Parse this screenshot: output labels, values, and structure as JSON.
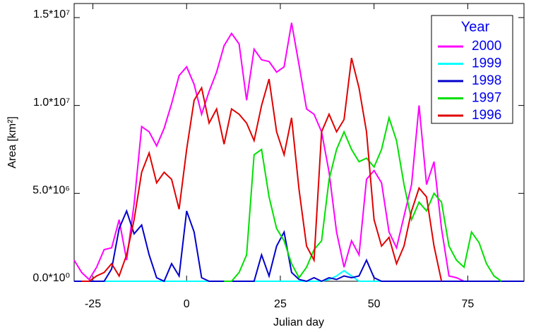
{
  "chart_data": {
    "type": "line",
    "x_label": "Julian day",
    "y_label": "Area [km²]",
    "legend_title": "Year",
    "legend_position": "upper right",
    "x": [
      -30,
      -28,
      -26,
      -24,
      -22,
      -20,
      -18,
      -16,
      -14,
      -12,
      -10,
      -8,
      -6,
      -4,
      -2,
      0,
      2,
      4,
      6,
      8,
      10,
      12,
      14,
      16,
      18,
      20,
      22,
      24,
      26,
      28,
      30,
      32,
      34,
      36,
      38,
      40,
      42,
      44,
      46,
      48,
      50,
      52,
      54,
      56,
      58,
      60,
      62,
      64,
      66,
      68,
      70,
      72,
      74,
      76,
      78,
      80,
      82,
      84,
      86,
      88,
      90
    ],
    "xlim": [
      -30,
      90
    ],
    "xticks": [
      -25,
      0,
      25,
      50,
      75
    ],
    "ylim": [
      0,
      15800000
    ],
    "yticks": [
      {
        "value": 0,
        "label": "0.0*10⁰"
      },
      {
        "value": 5000000,
        "label": "5.0*10⁶"
      },
      {
        "value": 10000000,
        "label": "1.0*10⁷"
      },
      {
        "value": 15000000,
        "label": "1.5*10⁷"
      }
    ],
    "series": [
      {
        "name": "2000",
        "color": "#ff00ff",
        "values": [
          1200000.0,
          500000.0,
          100000.0,
          800000.0,
          1800000.0,
          1900000.0,
          3500000.0,
          1200000.0,
          4400000.0,
          8800000.0,
          8500000.0,
          7700000.0,
          8700000.0,
          10100000.0,
          11700000.0,
          12200000.0,
          11200000.0,
          9500000.0,
          10800000.0,
          11900000.0,
          13400000.0,
          14100000.0,
          13500000.0,
          10300000.0,
          13200000.0,
          12600000.0,
          12500000.0,
          11900000.0,
          12200000.0,
          14700000.0,
          12300000.0,
          9800000.0,
          9500000.0,
          8500000.0,
          6200000.0,
          2800000.0,
          800000.0,
          2300000.0,
          1500000.0,
          5800000.0,
          6300000.0,
          5600000.0,
          2800000.0,
          1900000.0,
          3700000.0,
          5500000.0,
          10000000.0,
          5500000.0,
          6800000.0,
          3000000.0,
          300000.0,
          200000.0,
          0,
          null,
          null,
          null,
          null,
          null,
          null,
          null,
          null
        ]
      },
      {
        "name": "1999",
        "color": "#00ffff",
        "values": [
          0,
          0,
          0,
          0,
          0,
          0,
          0,
          0,
          0,
          0,
          0,
          0,
          0,
          0,
          0,
          0,
          0,
          0,
          0,
          0,
          0,
          0,
          0,
          0,
          0,
          0,
          0,
          0,
          0,
          0,
          0,
          0,
          0,
          0,
          100000.0,
          300000.0,
          600000.0,
          300000.0,
          0,
          0,
          0,
          0,
          0,
          0,
          0,
          0,
          0,
          0,
          0,
          0,
          0,
          0,
          0,
          0,
          0,
          0,
          0,
          0,
          0,
          0,
          0
        ]
      },
      {
        "name": "1998",
        "color": "#0000cc",
        "values": [
          0,
          0,
          0,
          0,
          0,
          700000.0,
          3000000.0,
          4000000.0,
          2700000.0,
          3200000.0,
          1500000.0,
          200000.0,
          0,
          1000000.0,
          300000.0,
          4000000.0,
          2800000.0,
          200000.0,
          0,
          0,
          0,
          0,
          0,
          0,
          0,
          1500000.0,
          300000.0,
          2000000.0,
          2800000.0,
          500000.0,
          100000.0,
          0,
          200000.0,
          0,
          200000.0,
          100000.0,
          300000.0,
          200000.0,
          300000.0,
          1200000.0,
          200000.0,
          0,
          0,
          0,
          0,
          0,
          0,
          0,
          0,
          0,
          0,
          0,
          0,
          0,
          0,
          0,
          0,
          0,
          0,
          0,
          0
        ]
      },
      {
        "name": "1997",
        "color": "#00e000",
        "values": [
          null,
          null,
          null,
          null,
          null,
          null,
          null,
          null,
          null,
          null,
          null,
          null,
          null,
          null,
          null,
          null,
          null,
          null,
          null,
          null,
          0,
          0,
          500000.0,
          1500000.0,
          7200000.0,
          7500000.0,
          4800000.0,
          3000000.0,
          2300000.0,
          1000000.0,
          200000.0,
          800000.0,
          1800000.0,
          2300000.0,
          5800000.0,
          7500000.0,
          8500000.0,
          7500000.0,
          6800000.0,
          7000000.0,
          6500000.0,
          7500000.0,
          9300000.0,
          8000000.0,
          5500000.0,
          3500000.0,
          4500000.0,
          4000000.0,
          5000000.0,
          4500000.0,
          2000000.0,
          1200000.0,
          800000.0,
          2800000.0,
          2200000.0,
          1000000.0,
          300000.0,
          0,
          null,
          null,
          null
        ]
      },
      {
        "name": "1996",
        "color": "#e00000",
        "values": [
          null,
          0,
          0,
          300000.0,
          500000.0,
          1000000.0,
          300000.0,
          1500000.0,
          3500000.0,
          6200000.0,
          7300000.0,
          5600000.0,
          6200000.0,
          5800000.0,
          4100000.0,
          7500000.0,
          10300000.0,
          11000000.0,
          9000000.0,
          9800000.0,
          7800000.0,
          9800000.0,
          9500000.0,
          9000000.0,
          8000000.0,
          10000000.0,
          11500000.0,
          8500000.0,
          7200000.0,
          9300000.0,
          5200000.0,
          2000000.0,
          1200000.0,
          8500000.0,
          9500000.0,
          8500000.0,
          9200000.0,
          12700000.0,
          11000000.0,
          8500000.0,
          3500000.0,
          2000000.0,
          2500000.0,
          1000000.0,
          2000000.0,
          4000000.0,
          5300000.0,
          4800000.0,
          2000000.0,
          0,
          null,
          null,
          null,
          null,
          null,
          null,
          null,
          null,
          null,
          null,
          null
        ]
      }
    ]
  }
}
